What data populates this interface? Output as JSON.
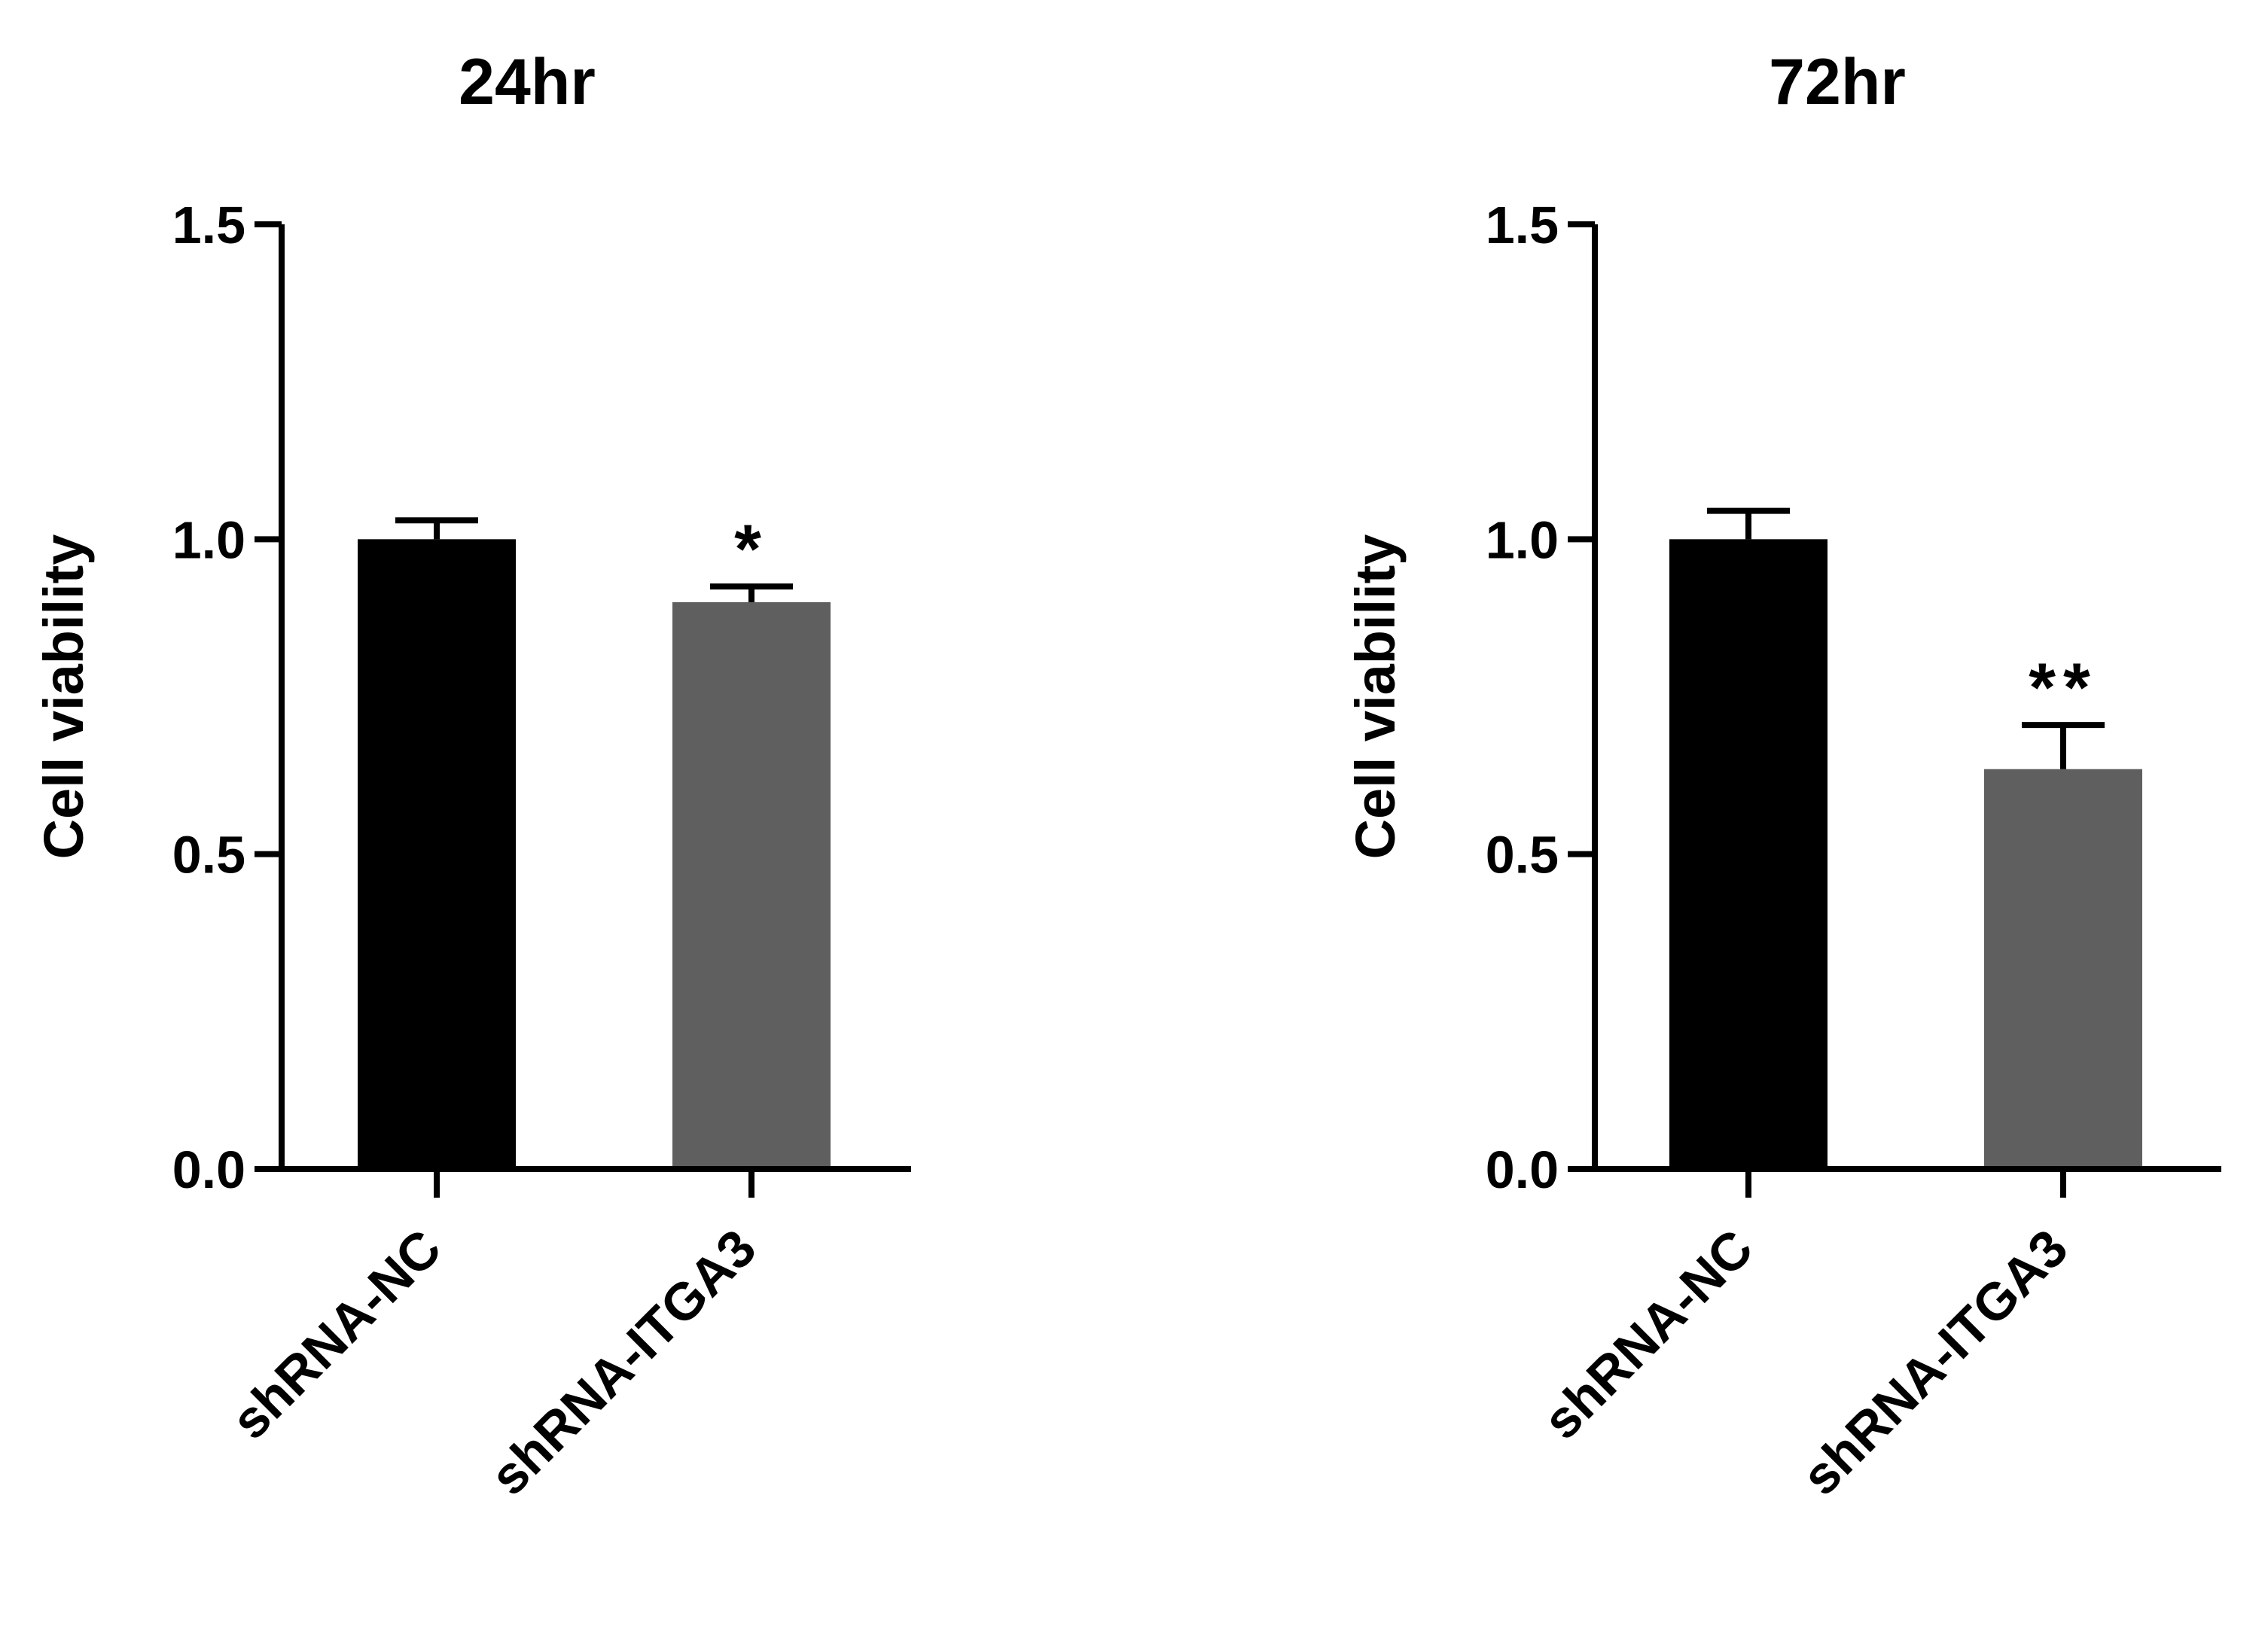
{
  "colors": {
    "background": "#ffffff",
    "axis": "#000000",
    "bar_nc": "#000000",
    "bar_itga3": "#5f5f5f"
  },
  "chart_data": [
    {
      "type": "bar",
      "title": "24hr",
      "ylabel": "Cell viability",
      "xlabel": "",
      "ylim": [
        0,
        1.5
      ],
      "yticks": [
        "0.0",
        "0.5",
        "1.0",
        "1.5"
      ],
      "categories": [
        "shRNA-NC",
        "shRNA-ITGA3"
      ],
      "values": [
        1.0,
        0.9
      ],
      "errors": [
        0.03,
        0.025
      ],
      "annotations": [
        "",
        "*"
      ],
      "grid": false,
      "legend": "none"
    },
    {
      "type": "bar",
      "title": "72hr",
      "ylabel": "Cell viability",
      "xlabel": "",
      "ylim": [
        0,
        1.5
      ],
      "yticks": [
        "0.0",
        "0.5",
        "1.0",
        "1.5"
      ],
      "categories": [
        "shRNA-NC",
        "shRNA-ITGA3"
      ],
      "values": [
        1.0,
        0.635
      ],
      "errors": [
        0.045,
        0.07
      ],
      "annotations": [
        "",
        "**"
      ],
      "grid": false,
      "legend": "none"
    }
  ]
}
